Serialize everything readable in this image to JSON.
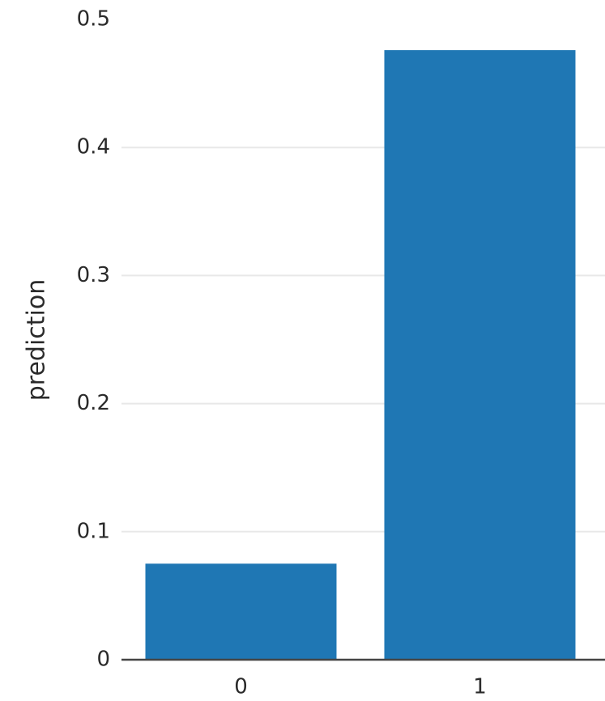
{
  "chart_data": {
    "type": "bar",
    "y_label": "prediction",
    "categories": [
      "0",
      "1"
    ],
    "values": [
      0.075,
      0.476
    ],
    "color": "#1f77b4",
    "ylim": [
      0,
      0.5
    ],
    "yticks": [
      0,
      0.1,
      0.2,
      0.3,
      0.4,
      0.5
    ],
    "grid": true
  }
}
